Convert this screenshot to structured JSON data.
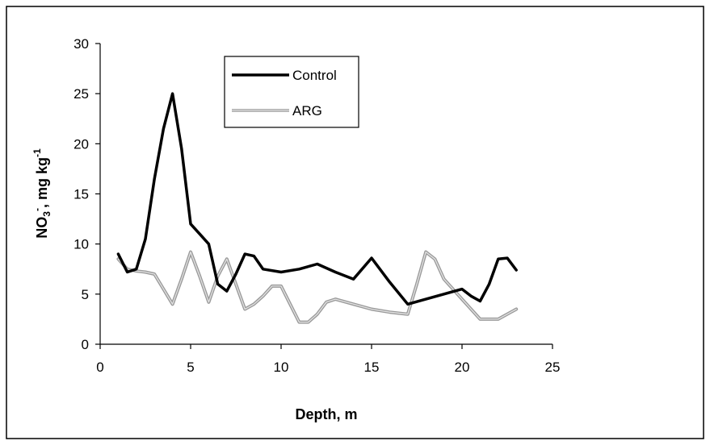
{
  "chart_data": {
    "type": "line",
    "title": "",
    "xlabel": "Depth, m",
    "ylabel": {
      "base": "NO",
      "sub": "3",
      "sup_charge": "-",
      "middle": ", mg kg",
      "sup_exp": "-1"
    },
    "xlim": [
      0,
      25
    ],
    "ylim": [
      0,
      30
    ],
    "xticks": [
      0,
      5,
      10,
      15,
      20,
      25
    ],
    "yticks": [
      0,
      5,
      10,
      15,
      20,
      25,
      30
    ],
    "grid": false,
    "legend_position": "top-center",
    "series": [
      {
        "name": "Control",
        "color": "#000000",
        "style": "solid-thick",
        "x": [
          1,
          1.5,
          2,
          2.5,
          3,
          3.5,
          4,
          4.5,
          5,
          5.5,
          6,
          6.5,
          7,
          7.5,
          8,
          8.5,
          9,
          10,
          11,
          12,
          13,
          14,
          15,
          16,
          17,
          18,
          19,
          20,
          20.5,
          21,
          21.5,
          22,
          22.5,
          23
        ],
        "y": [
          9,
          7.2,
          7.5,
          10.5,
          16.5,
          21.5,
          25,
          19.5,
          12,
          11,
          10,
          6,
          5.3,
          7,
          9,
          8.8,
          7.5,
          7.2,
          7.5,
          8,
          7.2,
          6.5,
          8.6,
          6.2,
          4,
          4.5,
          5,
          5.5,
          4.8,
          4.3,
          6,
          8.5,
          8.6,
          7.4
        ]
      },
      {
        "name": "ARG",
        "color": "#9a9a9a",
        "style": "gray-band",
        "x": [
          1,
          1.5,
          2,
          2.5,
          3,
          3.5,
          4,
          4.5,
          5,
          5.5,
          6,
          6.5,
          7,
          7.5,
          8,
          8.5,
          9,
          9.5,
          10,
          10.5,
          11,
          11.5,
          12,
          12.5,
          13,
          14,
          15,
          16,
          17,
          17.5,
          18,
          18.5,
          19,
          20,
          21,
          22,
          23
        ],
        "y": [
          8.5,
          7.5,
          7.3,
          7.2,
          7,
          5.5,
          4,
          6.5,
          9.2,
          6.8,
          4.2,
          6.8,
          8.5,
          6,
          3.5,
          4,
          4.8,
          5.8,
          5.8,
          4,
          2.2,
          2.2,
          3,
          4.2,
          4.5,
          4,
          3.5,
          3.2,
          3,
          6,
          9.2,
          8.5,
          6.5,
          4.5,
          2.5,
          2.5,
          3.5
        ]
      }
    ]
  }
}
